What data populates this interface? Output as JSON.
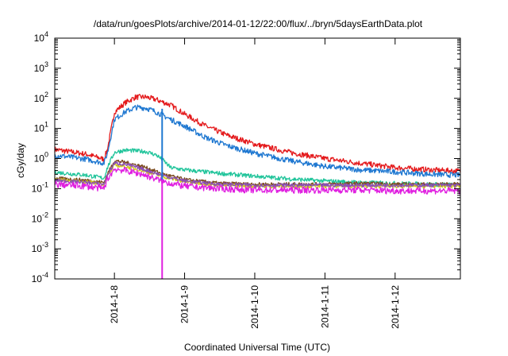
{
  "chart_data": {
    "type": "line",
    "title": "/data/run/goesPlots/archive/2014-01-12/22:00/flux/../bryn/5daysEarthData.plot",
    "xlabel": "Coordinated Universal Time (UTC)",
    "ylabel": "cGy/day",
    "yscale": "log",
    "ylim": [
      0.0001,
      10000
    ],
    "xlim": [
      -0.85,
      4.93
    ],
    "grid": false,
    "y_ticks": [
      {
        "value": 0.0001,
        "base": "10",
        "exp": "-4"
      },
      {
        "value": 0.001,
        "base": "10",
        "exp": "-3"
      },
      {
        "value": 0.01,
        "base": "10",
        "exp": "-2"
      },
      {
        "value": 0.1,
        "base": "10",
        "exp": "-1"
      },
      {
        "value": 1,
        "base": "10",
        "exp": "0"
      },
      {
        "value": 10,
        "base": "10",
        "exp": "1"
      },
      {
        "value": 100,
        "base": "10",
        "exp": "2"
      },
      {
        "value": 1000,
        "base": "10",
        "exp": "3"
      },
      {
        "value": 10000,
        "base": "10",
        "exp": "4"
      }
    ],
    "x_ticks": [
      {
        "value": 0,
        "label": "2014-1-8"
      },
      {
        "value": 1,
        "label": "2014-1-9"
      },
      {
        "value": 2,
        "label": "2014-1-10"
      },
      {
        "value": 3,
        "label": "2014-1-11"
      },
      {
        "value": 4,
        "label": "2014-1-12"
      }
    ],
    "series": [
      {
        "color": "#e41a1c",
        "noise": 0.09,
        "values": [
          [
            -0.85,
            2.0
          ],
          [
            -0.4,
            1.4
          ],
          [
            -0.15,
            0.95
          ],
          [
            -0.1,
            2.0
          ],
          [
            0.0,
            35
          ],
          [
            0.15,
            70
          ],
          [
            0.3,
            110
          ],
          [
            0.45,
            110
          ],
          [
            0.6,
            90
          ],
          [
            0.8,
            60
          ],
          [
            1.0,
            30
          ],
          [
            1.3,
            12
          ],
          [
            1.6,
            6
          ],
          [
            2.0,
            3
          ],
          [
            2.5,
            1.6
          ],
          [
            3.0,
            1.0
          ],
          [
            3.5,
            0.7
          ],
          [
            4.0,
            0.5
          ],
          [
            4.5,
            0.42
          ],
          [
            4.93,
            0.38
          ]
        ]
      },
      {
        "color": "#1f78d1",
        "noise": 0.09,
        "values": [
          [
            -0.85,
            1.3
          ],
          [
            -0.4,
            0.95
          ],
          [
            -0.15,
            0.7
          ],
          [
            -0.1,
            1.5
          ],
          [
            0.0,
            20
          ],
          [
            0.15,
            35
          ],
          [
            0.3,
            50
          ],
          [
            0.45,
            48
          ],
          [
            0.6,
            35
          ],
          [
            0.8,
            20
          ],
          [
            1.0,
            12
          ],
          [
            1.3,
            5
          ],
          [
            1.6,
            2.7
          ],
          [
            2.0,
            1.5
          ],
          [
            2.5,
            0.85
          ],
          [
            3.0,
            0.55
          ],
          [
            3.5,
            0.42
          ],
          [
            4.0,
            0.36
          ],
          [
            4.5,
            0.3
          ],
          [
            4.93,
            0.28
          ]
        ]
      },
      {
        "color": "#1fc49a",
        "noise": 0.07,
        "values": [
          [
            -0.85,
            0.35
          ],
          [
            -0.4,
            0.28
          ],
          [
            -0.15,
            0.22
          ],
          [
            -0.1,
            0.5
          ],
          [
            0.0,
            1.6
          ],
          [
            0.15,
            1.9
          ],
          [
            0.3,
            1.8
          ],
          [
            0.45,
            1.7
          ],
          [
            0.6,
            1.3
          ],
          [
            0.7,
            0.85
          ],
          [
            0.8,
            0.5
          ],
          [
            1.0,
            0.42
          ],
          [
            1.5,
            0.32
          ],
          [
            2.0,
            0.26
          ],
          [
            2.5,
            0.21
          ],
          [
            3.0,
            0.18
          ],
          [
            3.5,
            0.16
          ],
          [
            4.0,
            0.15
          ],
          [
            4.5,
            0.14
          ],
          [
            4.93,
            0.13
          ]
        ]
      },
      {
        "color": "#7b4a1e",
        "noise": 0.06,
        "values": [
          [
            -0.85,
            0.22
          ],
          [
            -0.4,
            0.19
          ],
          [
            -0.15,
            0.16
          ],
          [
            -0.1,
            0.3
          ],
          [
            0.0,
            0.85
          ],
          [
            0.15,
            0.75
          ],
          [
            0.4,
            0.55
          ],
          [
            0.7,
            0.3
          ],
          [
            1.0,
            0.2
          ],
          [
            1.5,
            0.15
          ],
          [
            2.0,
            0.14
          ],
          [
            2.5,
            0.14
          ],
          [
            3.0,
            0.14
          ],
          [
            3.5,
            0.15
          ],
          [
            4.0,
            0.14
          ],
          [
            4.5,
            0.14
          ],
          [
            4.93,
            0.14
          ]
        ]
      },
      {
        "color": "#cfc81a",
        "noise": 0.06,
        "values": [
          [
            -0.85,
            0.2
          ],
          [
            -0.4,
            0.17
          ],
          [
            -0.15,
            0.14
          ],
          [
            -0.1,
            0.25
          ],
          [
            0.0,
            0.6
          ],
          [
            0.15,
            0.55
          ],
          [
            0.4,
            0.4
          ],
          [
            0.7,
            0.25
          ],
          [
            1.0,
            0.17
          ],
          [
            1.5,
            0.13
          ],
          [
            2.0,
            0.12
          ],
          [
            2.5,
            0.12
          ],
          [
            3.0,
            0.12
          ],
          [
            3.5,
            0.12
          ],
          [
            4.0,
            0.12
          ],
          [
            4.5,
            0.12
          ],
          [
            4.93,
            0.12
          ]
        ]
      },
      {
        "color": "#8a4fb5",
        "noise": 0.06,
        "values": [
          [
            -0.85,
            0.19
          ],
          [
            -0.4,
            0.16
          ],
          [
            -0.15,
            0.14
          ],
          [
            -0.1,
            0.28
          ],
          [
            0.0,
            0.7
          ],
          [
            0.15,
            0.65
          ],
          [
            0.4,
            0.45
          ],
          [
            0.7,
            0.27
          ],
          [
            1.0,
            0.18
          ],
          [
            1.5,
            0.14
          ],
          [
            2.0,
            0.13
          ],
          [
            2.5,
            0.13
          ],
          [
            3.0,
            0.13
          ],
          [
            3.5,
            0.13
          ],
          [
            4.0,
            0.13
          ],
          [
            4.5,
            0.13
          ],
          [
            4.93,
            0.13
          ]
        ]
      },
      {
        "color": "#e020e0",
        "noise": 0.11,
        "values": [
          [
            -0.85,
            0.14
          ],
          [
            -0.4,
            0.12
          ],
          [
            -0.15,
            0.1
          ],
          [
            -0.1,
            0.2
          ],
          [
            0.0,
            0.45
          ],
          [
            0.15,
            0.4
          ],
          [
            0.4,
            0.3
          ],
          [
            0.7,
            0.17
          ],
          [
            1.0,
            0.12
          ],
          [
            1.5,
            0.1
          ],
          [
            2.0,
            0.09
          ],
          [
            2.5,
            0.09
          ],
          [
            3.0,
            0.09
          ],
          [
            3.5,
            0.09
          ],
          [
            4.0,
            0.085
          ],
          [
            4.5,
            0.085
          ],
          [
            4.93,
            0.085
          ]
        ]
      }
    ],
    "drops": [
      {
        "color": "#1f78d1",
        "x": 0.68,
        "from": 45,
        "to": 0.18
      },
      {
        "color": "#e020e0",
        "x": 0.68,
        "from": 0.2,
        "to": 0.0001
      }
    ]
  }
}
